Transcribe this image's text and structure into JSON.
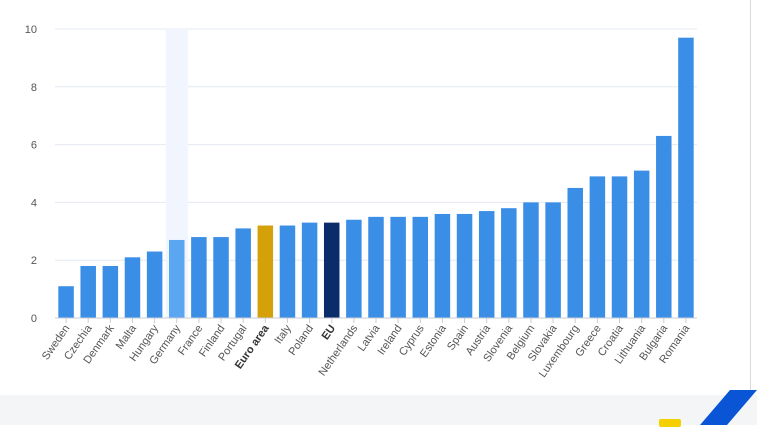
{
  "chart_data": {
    "type": "bar",
    "title": "",
    "xlabel": "",
    "ylabel": "",
    "ylim": [
      0,
      10
    ],
    "yticks": [
      0,
      2,
      4,
      6,
      8,
      10
    ],
    "grid": true,
    "highlighted_category": "Germany",
    "categories": [
      "Sweden",
      "Czechia",
      "Denmark",
      "Malta",
      "Hungary",
      "Germany",
      "France",
      "Finland",
      "Portugal",
      "Euro area",
      "Italy",
      "Poland",
      "EU",
      "Netherlands",
      "Latvia",
      "Ireland",
      "Cyprus",
      "Estonia",
      "Spain",
      "Austria",
      "Slovenia",
      "Belgium",
      "Slovakia",
      "Luxembourg",
      "Greece",
      "Croatia",
      "Lithuania",
      "Bulgaria",
      "Romania"
    ],
    "values": [
      1.1,
      1.8,
      1.8,
      2.1,
      2.3,
      2.7,
      2.8,
      2.8,
      3.1,
      3.2,
      3.2,
      3.3,
      3.3,
      3.4,
      3.5,
      3.5,
      3.5,
      3.6,
      3.6,
      3.7,
      3.8,
      4.0,
      4.0,
      4.5,
      4.9,
      4.9,
      5.1,
      6.3,
      9.7
    ],
    "bold_categories": [
      "Euro area",
      "EU"
    ],
    "colors": {
      "default": "#3a8ee6",
      "highlight": "#5aa6f0",
      "euro_area": "#d4a10a",
      "eu": "#0b2c6b",
      "grid": "#e3e8f2",
      "hover_band": "#f1f5fe"
    }
  },
  "branding": {
    "logo_name": "ec-logo-icon",
    "accent_yellow": "#f4d000",
    "accent_blue": "#0a55d6"
  }
}
